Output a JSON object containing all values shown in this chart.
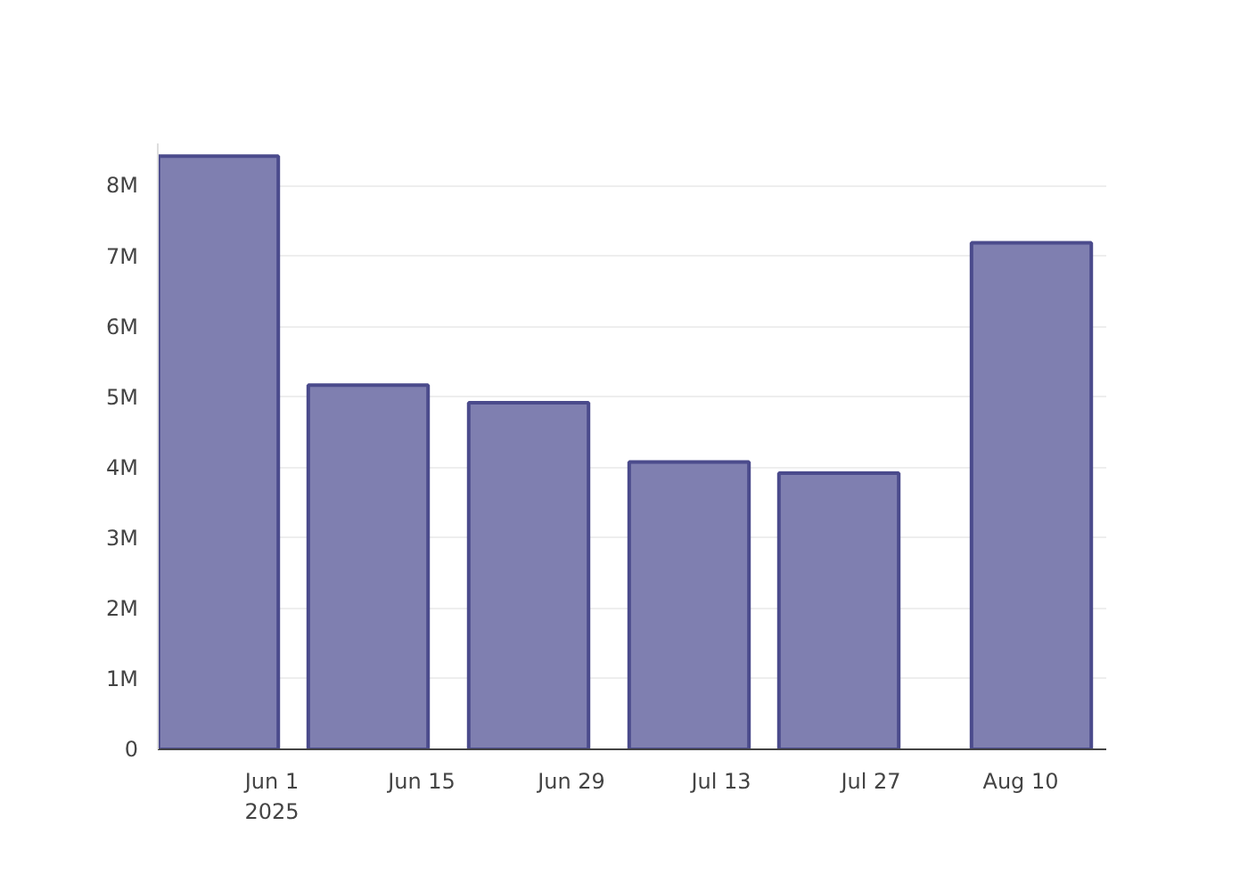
{
  "chart_data": {
    "type": "bar",
    "x": [
      "2025-05-27",
      "2025-06-10",
      "2025-06-25",
      "2025-07-10",
      "2025-07-24",
      "2025-08-11"
    ],
    "values": [
      8.42,
      5.17,
      4.92,
      4.08,
      3.92,
      7.19
    ],
    "color": "#7f7fb0",
    "xlim": [
      "2025-05-21T08:00",
      "2025-08-18"
    ],
    "xticks": [
      {
        "value": "2025-06-01",
        "label": "Jun 1\n2025"
      },
      {
        "value": "2025-06-15",
        "label": "Jun 15"
      },
      {
        "value": "2025-06-29",
        "label": "Jun 29"
      },
      {
        "value": "2025-07-13",
        "label": "Jul 13"
      },
      {
        "value": "2025-07-27",
        "label": "Jul 27"
      },
      {
        "value": "2025-08-10",
        "label": "Aug 10"
      }
    ],
    "ylim": [
      0,
      8.6
    ],
    "yticks": [
      {
        "value": 0,
        "label": "0"
      },
      {
        "value": 1,
        "label": "1M"
      },
      {
        "value": 2,
        "label": "2M"
      },
      {
        "value": 3,
        "label": "3M"
      },
      {
        "value": 4,
        "label": "4M"
      },
      {
        "value": 5,
        "label": "5M"
      },
      {
        "value": 6,
        "label": "6M"
      },
      {
        "value": 7,
        "label": "7M"
      },
      {
        "value": 8,
        "label": "8M"
      }
    ],
    "grid": "y"
  }
}
